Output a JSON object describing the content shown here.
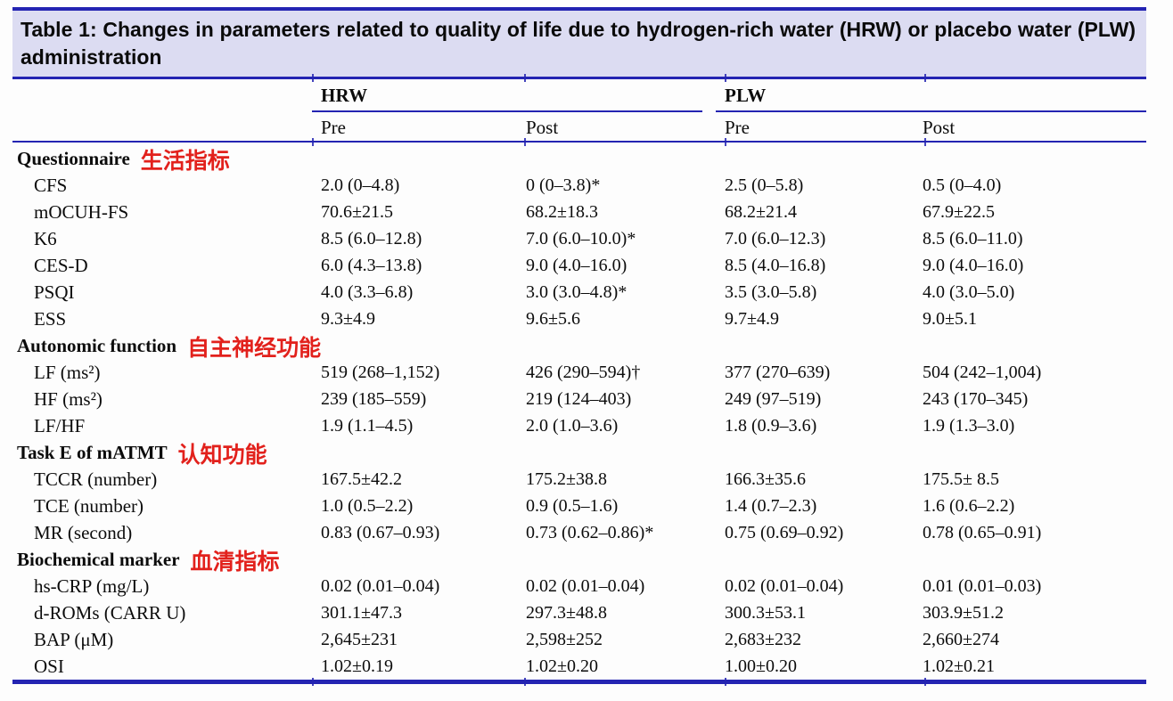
{
  "title": "Table 1: Changes in parameters related to quality of life due to hydrogen-rich water (HRW) or placebo water (PLW) administration",
  "colors": {
    "rule_blue": "#2424b2",
    "title_bg": "#dcdcf2",
    "annotation_red": "#e2211c",
    "text": "#0c0c0c"
  },
  "header": {
    "groups": [
      {
        "label": "HRW"
      },
      {
        "label": "PLW"
      }
    ],
    "subcolumns": [
      "Pre",
      "Post",
      "Pre",
      "Post"
    ]
  },
  "table": {
    "sections": [
      {
        "label": "Questionnaire",
        "annotation": "生活指标",
        "rows": [
          {
            "label": "CFS",
            "values": [
              "2.0 (0–4.8)",
              "0 (0–3.8)*",
              "2.5 (0–5.8)",
              "0.5 (0–4.0)"
            ]
          },
          {
            "label": "mOCUH-FS",
            "values": [
              "70.6±21.5",
              "68.2±18.3",
              "68.2±21.4",
              "67.9±22.5"
            ]
          },
          {
            "label": "K6",
            "values": [
              "8.5 (6.0–12.8)",
              "7.0 (6.0–10.0)*",
              "7.0 (6.0–12.3)",
              "8.5 (6.0–11.0)"
            ]
          },
          {
            "label": "CES-D",
            "values": [
              "6.0 (4.3–13.8)",
              "9.0 (4.0–16.0)",
              "8.5 (4.0–16.8)",
              "9.0 (4.0–16.0)"
            ]
          },
          {
            "label": "PSQI",
            "values": [
              "4.0 (3.3–6.8)",
              "3.0 (3.0–4.8)*",
              "3.5 (3.0–5.8)",
              "4.0 (3.0–5.0)"
            ]
          },
          {
            "label": "ESS",
            "values": [
              "9.3±4.9",
              "9.6±5.6",
              "9.7±4.9",
              "9.0±5.1"
            ]
          }
        ]
      },
      {
        "label": "Autonomic function",
        "annotation": "自主神经功能",
        "rows": [
          {
            "label": "LF (ms²)",
            "values": [
              "519 (268–1,152)",
              "426 (290–594)†",
              "377 (270–639)",
              "504 (242–1,004)"
            ]
          },
          {
            "label": "HF (ms²)",
            "values": [
              "239 (185–559)",
              "219 (124–403)",
              "249 (97–519)",
              "243 (170–345)"
            ]
          },
          {
            "label": "LF/HF",
            "values": [
              "1.9 (1.1–4.5)",
              "2.0 (1.0–3.6)",
              "1.8 (0.9–3.6)",
              "1.9 (1.3–3.0)"
            ]
          }
        ]
      },
      {
        "label": "Task E of mATMT",
        "annotation": "认知功能",
        "rows": [
          {
            "label": "TCCR (number)",
            "values": [
              "167.5±42.2",
              "175.2±38.8",
              "166.3±35.6",
              "175.5± 8.5"
            ]
          },
          {
            "label": "TCE (number)",
            "values": [
              "1.0 (0.5–2.2)",
              "0.9 (0.5–1.6)",
              "1.4 (0.7–2.3)",
              "1.6 (0.6–2.2)"
            ]
          },
          {
            "label": "MR (second)",
            "values": [
              "0.83 (0.67–0.93)",
              "0.73 (0.62–0.86)*",
              "0.75 (0.69–0.92)",
              "0.78 (0.65–0.91)"
            ]
          }
        ]
      },
      {
        "label": "Biochemical marker",
        "annotation": "血清指标",
        "rows": [
          {
            "label": "hs-CRP (mg/L)",
            "values": [
              "0.02 (0.01–0.04)",
              "0.02 (0.01–0.04)",
              "0.02 (0.01–0.04)",
              "0.01 (0.01–0.03)"
            ]
          },
          {
            "label": "d-ROMs (CARR U)",
            "values": [
              "301.1±47.3",
              "297.3±48.8",
              "300.3±53.1",
              "303.9±51.2"
            ]
          },
          {
            "label": "BAP (μM)",
            "values": [
              "2,645±231",
              "2,598±252",
              "2,683±232",
              "2,660±274"
            ]
          },
          {
            "label": "OSI",
            "values": [
              "1.02±0.19",
              "1.02±0.20",
              "1.00±0.20",
              "1.02±0.21"
            ]
          }
        ]
      }
    ]
  }
}
